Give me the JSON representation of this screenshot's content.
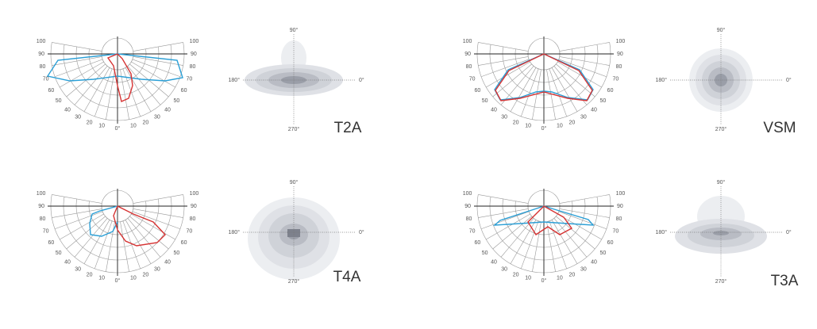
{
  "panels": [
    {
      "type_label": "T2A",
      "polar": {
        "left_labels": [
          "100",
          "90",
          "80",
          "70",
          "60",
          "50",
          "40",
          "30",
          "20",
          "10"
        ],
        "center_label": "0°",
        "right_labels": [
          "100",
          "90",
          "80",
          "70",
          "60",
          "50",
          "40",
          "30",
          "20",
          "10"
        ]
      },
      "iso": {
        "top": "90°",
        "bottom": "270°",
        "left": "180°",
        "right": "0°"
      }
    },
    {
      "type_label": "VSM",
      "polar": {
        "left_labels": [
          "100",
          "90",
          "80",
          "70",
          "60",
          "50",
          "40",
          "30",
          "20",
          "10"
        ],
        "center_label": "0°",
        "right_labels": [
          "100",
          "90",
          "80",
          "70",
          "60",
          "50",
          "40",
          "30",
          "20",
          "10"
        ]
      },
      "iso": {
        "top": "90°",
        "bottom": "270°",
        "left": "180°",
        "right": "0°"
      }
    },
    {
      "type_label": "T4A",
      "polar": {
        "left_labels": [
          "100",
          "90",
          "80",
          "70",
          "60",
          "50",
          "40",
          "30",
          "20",
          "10"
        ],
        "center_label": "0°",
        "right_labels": [
          "100",
          "90",
          "80",
          "70",
          "60",
          "50",
          "40",
          "30",
          "20",
          "10"
        ]
      },
      "iso": {
        "top": "90°",
        "bottom": "270°",
        "left": "180°",
        "right": "0°"
      }
    },
    {
      "type_label": "T3A",
      "polar": {
        "left_labels": [
          "100",
          "90",
          "80",
          "70",
          "60",
          "50",
          "40",
          "30",
          "20",
          "10"
        ],
        "center_label": "0°",
        "right_labels": [
          "100",
          "90",
          "80",
          "70",
          "60",
          "50",
          "40",
          "30",
          "20",
          "10"
        ]
      },
      "iso": {
        "top": "90°",
        "bottom": "270°",
        "left": "180°",
        "right": "0°"
      }
    }
  ]
}
